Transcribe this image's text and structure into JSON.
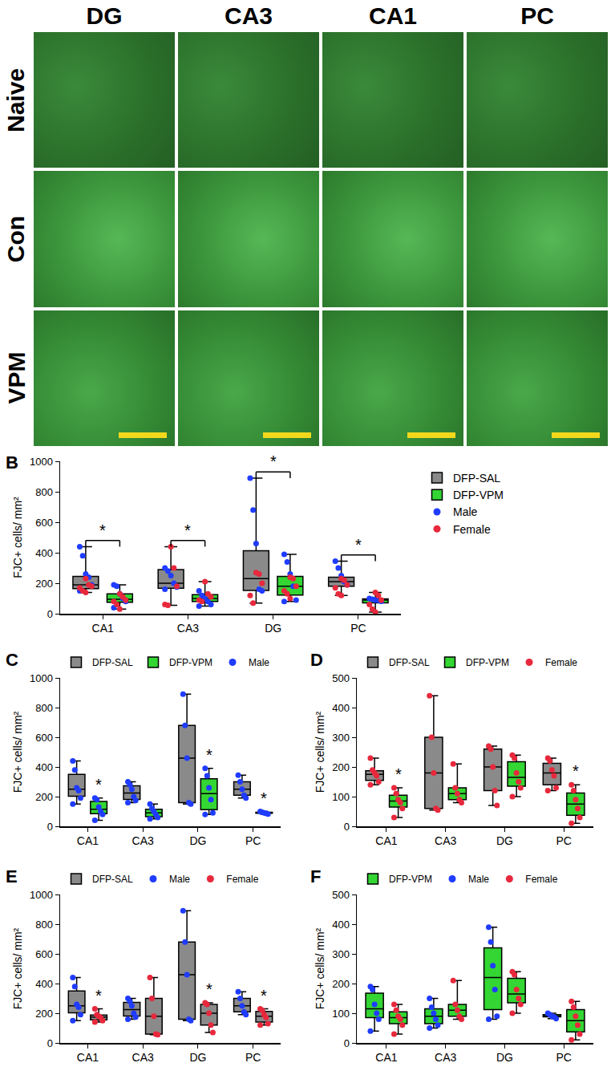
{
  "image_grid": {
    "columns": [
      "DG",
      "CA3",
      "CA1",
      "PC"
    ],
    "rows": [
      "Naive",
      "Con",
      "VPM"
    ]
  },
  "chart_data": [
    {
      "type": "box",
      "label": "B",
      "categories": [
        "CA1",
        "CA3",
        "DG",
        "PC"
      ],
      "y_label": "FJC+ cells/ mm²",
      "ylim": [
        0,
        1000
      ],
      "yticks": [
        0,
        200,
        400,
        600,
        800,
        1000
      ],
      "grid": false,
      "legend": "right",
      "legend_items": [
        {
          "name": "DFP-SAL",
          "color": "#8a8a8a",
          "marker": "square"
        },
        {
          "name": "DFP-VPM",
          "color": "#33d633",
          "marker": "square"
        },
        {
          "name": "Male",
          "color": "#1f3cff",
          "marker": "circle"
        },
        {
          "name": "Female",
          "color": "#e8283c",
          "marker": "circle"
        }
      ],
      "groups": [
        {
          "color": "#8a8a8a",
          "points": [
            {
              "sex": "Male",
              "values": [
                [
                  440,
                  380,
                  260,
                  240,
                  190,
                  150
                ],
                [
                  300,
                  280,
                  250,
                  200,
                  175,
                  160
                ],
                [
                  890,
                  680,
                  460,
                  160,
                  150
                ],
                [
                  345,
                  300,
                  250,
                  210,
                  190
                ]
              ]
            },
            {
              "sex": "Female",
              "values": [
                [
                  230,
                  190,
                  180,
                  170,
                  150,
                  140
                ],
                [
                  440,
                  300,
                  180,
                  60,
                  55
                ],
                [
                  270,
                  260,
                  200,
                  120,
                  70
                ],
                [
                  230,
                  220,
                  190,
                  170,
                  130,
                  120
                ]
              ]
            }
          ]
        },
        {
          "color": "#33d633",
          "points": [
            {
              "sex": "Male",
              "values": [
                [
                  190,
                  180,
                  130,
                  100,
                  80,
                  40
                ],
                [
                  150,
                  120,
                  100,
                  80,
                  60,
                  50
                ],
                [
                  390,
                  340,
                  260,
                  180,
                  90,
                  80
                ],
                [
                  100,
                  95,
                  90,
                  88,
                  82
                ]
              ]
            },
            {
              "sex": "Female",
              "values": [
                [
                  130,
                  110,
                  90,
                  80,
                  60,
                  30
                ],
                [
                  210,
                  130,
                  110,
                  90,
                  80
                ],
                [
                  240,
                  230,
                  180,
                  150,
                  130,
                  100
                ],
                [
                  140,
                  120,
                  90,
                  60,
                  30,
                  10
                ]
              ]
            }
          ]
        }
      ],
      "significance": [
        {
          "category": "CA1",
          "groups": [
            0,
            1
          ],
          "text": "*"
        },
        {
          "category": "CA3",
          "groups": [
            0,
            1
          ],
          "text": "*"
        },
        {
          "category": "DG",
          "groups": [
            0,
            1
          ],
          "text": "*"
        },
        {
          "category": "PC",
          "groups": [
            0,
            1
          ],
          "text": "*"
        }
      ]
    },
    {
      "type": "box",
      "label": "C",
      "categories": [
        "CA1",
        "CA3",
        "DG",
        "PC"
      ],
      "y_label": "FJC+ cells/ mm²",
      "ylim": [
        0,
        1000
      ],
      "yticks": [
        0,
        200,
        400,
        600,
        800,
        1000
      ],
      "grid": false,
      "legend": "top",
      "legend_items": [
        {
          "name": "DFP-SAL",
          "color": "#8a8a8a",
          "marker": "square"
        },
        {
          "name": "DFP-VPM",
          "color": "#33d633",
          "marker": "square"
        },
        {
          "name": "Male",
          "color": "#1f3cff",
          "marker": "circle"
        }
      ],
      "groups": [
        {
          "color": "#8a8a8a",
          "points": [
            {
              "sex": "Male",
              "values": [
                [
                  440,
                  380,
                  260,
                  240,
                  190,
                  150
                ],
                [
                  300,
                  280,
                  250,
                  200,
                  175,
                  160
                ],
                [
                  890,
                  680,
                  460,
                  160,
                  150
                ],
                [
                  345,
                  300,
                  250,
                  210,
                  190
                ]
              ]
            }
          ]
        },
        {
          "color": "#33d633",
          "points": [
            {
              "sex": "Male",
              "values": [
                [
                  190,
                  180,
                  130,
                  100,
                  80,
                  40
                ],
                [
                  150,
                  120,
                  100,
                  80,
                  60,
                  50
                ],
                [
                  390,
                  340,
                  260,
                  180,
                  90,
                  80
                ],
                [
                  100,
                  95,
                  90,
                  88,
                  82
                ]
              ]
            }
          ]
        }
      ],
      "significance": [
        {
          "category": "CA1",
          "group": 1,
          "text": "*"
        },
        {
          "category": "DG",
          "group": 1,
          "text": "*"
        },
        {
          "category": "PC",
          "group": 1,
          "text": "*"
        }
      ]
    },
    {
      "type": "box",
      "label": "D",
      "categories": [
        "CA1",
        "CA3",
        "DG",
        "PC"
      ],
      "y_label": "FJC+ cells/ mm²",
      "ylim": [
        0,
        500
      ],
      "yticks": [
        0,
        100,
        200,
        300,
        400,
        500
      ],
      "grid": false,
      "legend": "top",
      "legend_items": [
        {
          "name": "DFP-SAL",
          "color": "#8a8a8a",
          "marker": "square"
        },
        {
          "name": "DFP-VPM",
          "color": "#33d633",
          "marker": "square"
        },
        {
          "name": "Female",
          "color": "#e8283c",
          "marker": "circle"
        }
      ],
      "groups": [
        {
          "color": "#8a8a8a",
          "points": [
            {
              "sex": "Female",
              "values": [
                [
                  230,
                  190,
                  180,
                  170,
                  150,
                  140
                ],
                [
                  440,
                  300,
                  180,
                  60,
                  55
                ],
                [
                  270,
                  260,
                  200,
                  120,
                  70
                ],
                [
                  230,
                  220,
                  190,
                  170,
                  130,
                  120
                ]
              ]
            }
          ]
        },
        {
          "color": "#33d633",
          "points": [
            {
              "sex": "Female",
              "values": [
                [
                  130,
                  110,
                  90,
                  80,
                  60,
                  30
                ],
                [
                  210,
                  130,
                  110,
                  90,
                  80
                ],
                [
                  240,
                  230,
                  180,
                  150,
                  130,
                  100
                ],
                [
                  140,
                  120,
                  90,
                  60,
                  30,
                  10
                ]
              ]
            }
          ]
        }
      ],
      "significance": [
        {
          "category": "CA1",
          "group": 1,
          "text": "*"
        },
        {
          "category": "PC",
          "group": 1,
          "text": "*"
        }
      ]
    },
    {
      "type": "box",
      "label": "E",
      "categories": [
        "CA1",
        "CA3",
        "DG",
        "PC"
      ],
      "y_label": "FJC+ cells/ mm²",
      "ylim": [
        0,
        1000
      ],
      "yticks": [
        0,
        200,
        400,
        600,
        800,
        1000
      ],
      "grid": false,
      "legend": "top",
      "legend_items": [
        {
          "name": "DFP-SAL",
          "color": "#8a8a8a",
          "marker": "square"
        },
        {
          "name": "Male",
          "color": "#1f3cff",
          "marker": "circle"
        },
        {
          "name": "Female",
          "color": "#e8283c",
          "marker": "circle"
        }
      ],
      "groups": [
        {
          "color": "#8a8a8a",
          "points": [
            {
              "sex": "Male",
              "values": [
                [
                  440,
                  380,
                  260,
                  240,
                  190,
                  150
                ],
                [
                  300,
                  280,
                  250,
                  200,
                  175,
                  160
                ],
                [
                  890,
                  680,
                  460,
                  160,
                  150
                ],
                [
                  345,
                  300,
                  250,
                  210,
                  190
                ]
              ]
            }
          ]
        },
        {
          "color": "#8a8a8a",
          "points": [
            {
              "sex": "Female",
              "values": [
                [
                  230,
                  190,
                  180,
                  170,
                  150,
                  140
                ],
                [
                  440,
                  300,
                  180,
                  60,
                  55
                ],
                [
                  270,
                  260,
                  200,
                  120,
                  70
                ],
                [
                  230,
                  220,
                  190,
                  170,
                  130,
                  120
                ]
              ]
            }
          ]
        }
      ],
      "significance": [
        {
          "category": "CA1",
          "group": 1,
          "text": "*"
        },
        {
          "category": "DG",
          "group": 1,
          "text": "*"
        },
        {
          "category": "PC",
          "group": 1,
          "text": "*"
        }
      ]
    },
    {
      "type": "box",
      "label": "F",
      "categories": [
        "CA1",
        "CA3",
        "DG",
        "PC"
      ],
      "y_label": "FJC+ cells/ mm²",
      "ylim": [
        0,
        500
      ],
      "yticks": [
        0,
        100,
        200,
        300,
        400,
        500
      ],
      "grid": false,
      "legend": "top",
      "legend_items": [
        {
          "name": "DFP-VPM",
          "color": "#33d633",
          "marker": "square"
        },
        {
          "name": "Male",
          "color": "#1f3cff",
          "marker": "circle"
        },
        {
          "name": "Female",
          "color": "#e8283c",
          "marker": "circle"
        }
      ],
      "groups": [
        {
          "color": "#33d633",
          "points": [
            {
              "sex": "Male",
              "values": [
                [
                  190,
                  180,
                  130,
                  100,
                  80,
                  40
                ],
                [
                  150,
                  120,
                  100,
                  80,
                  60,
                  50
                ],
                [
                  390,
                  340,
                  260,
                  180,
                  90,
                  80
                ],
                [
                  100,
                  95,
                  90,
                  88,
                  82
                ]
              ]
            }
          ]
        },
        {
          "color": "#33d633",
          "points": [
            {
              "sex": "Female",
              "values": [
                [
                  130,
                  110,
                  90,
                  80,
                  60,
                  30
                ],
                [
                  210,
                  130,
                  110,
                  90,
                  80
                ],
                [
                  240,
                  230,
                  180,
                  150,
                  130,
                  100
                ],
                [
                  140,
                  120,
                  90,
                  60,
                  30,
                  10
                ]
              ]
            }
          ]
        }
      ],
      "significance": []
    }
  ]
}
